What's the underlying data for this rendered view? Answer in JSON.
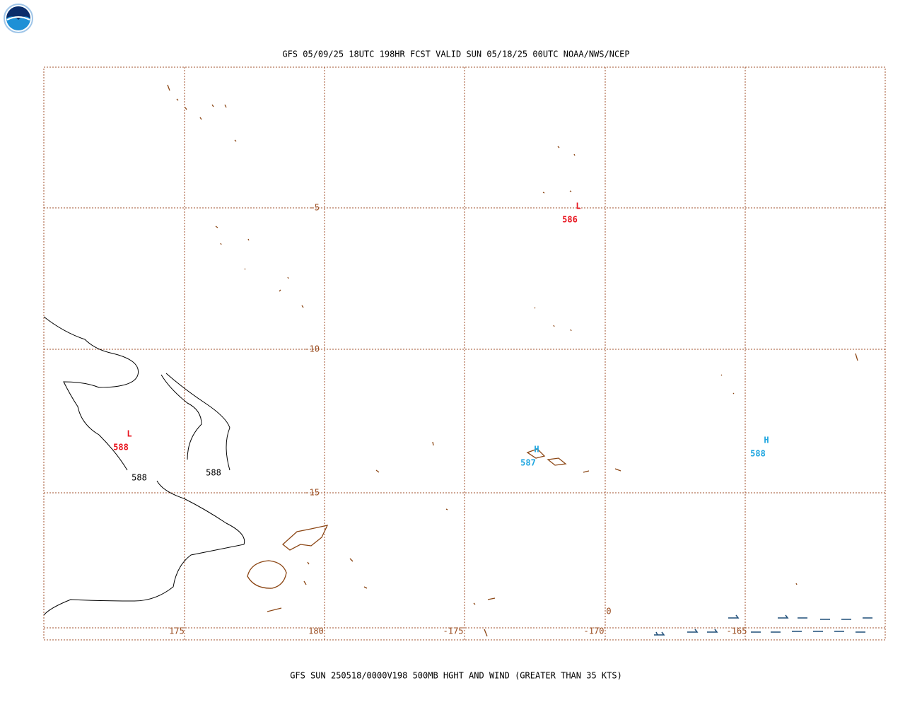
{
  "header": {
    "title": "GFS 05/09/25 18UTC 198HR FCST VALID SUN 05/18/25 00UTC NOAA/NWS/NCEP"
  },
  "footer": {
    "caption": "GFS SUN 250518/0000V198 500MB HGHT AND WIND (GREATER THAN 35 KTS)"
  },
  "grid": {
    "lat_labels": [
      "-5",
      "-10",
      "-15"
    ],
    "lon_labels": [
      "175",
      "180",
      "-175",
      "-170",
      "-165"
    ],
    "edge_label": "0"
  },
  "pressure_centers": [
    {
      "symbol": "L",
      "value": "586"
    },
    {
      "symbol": "L",
      "value": "588"
    },
    {
      "symbol": "H",
      "value": "587"
    },
    {
      "symbol": "H",
      "value": "588"
    }
  ],
  "contour_labels": [
    "588",
    "588"
  ]
}
